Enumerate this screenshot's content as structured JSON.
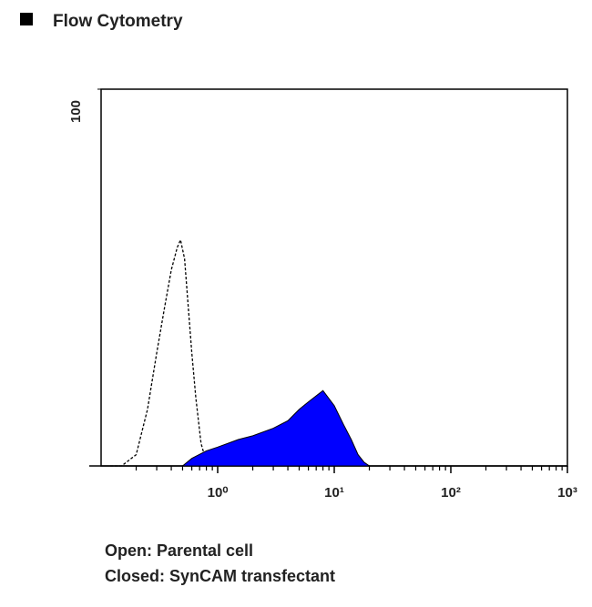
{
  "header": {
    "title": "Flow Cytometry"
  },
  "chart_data": {
    "type": "histogram-overlay",
    "xscale": "log",
    "xlim": [
      0.1,
      1000
    ],
    "ylim": [
      0,
      100
    ],
    "xticks": [
      {
        "value": 1,
        "label": "10⁰"
      },
      {
        "value": 10,
        "label": "10¹"
      },
      {
        "value": 100,
        "label": "10²"
      },
      {
        "value": 1000,
        "label": "10³"
      }
    ],
    "minor_xticks": [
      0.2,
      0.3,
      0.4,
      0.5,
      0.6,
      0.7,
      0.8,
      0.9,
      2,
      3,
      4,
      5,
      6,
      7,
      8,
      9,
      20,
      30,
      40,
      50,
      60,
      70,
      80,
      90,
      200,
      300,
      400,
      500,
      600,
      700,
      800,
      900
    ],
    "yticks": [
      100
    ],
    "series": [
      {
        "name": "Open: Parental cell",
        "color": "#000000",
        "filled": false,
        "x": [
          0.12,
          0.15,
          0.2,
          0.25,
          0.3,
          0.35,
          0.4,
          0.45,
          0.48,
          0.52,
          0.56,
          0.6,
          0.65,
          0.72,
          0.8,
          0.9
        ],
        "values": [
          0,
          0,
          3,
          15,
          30,
          42,
          52,
          58,
          60,
          55,
          42,
          30,
          18,
          6,
          1,
          0
        ]
      },
      {
        "name": "Closed: SynCAM transfectant",
        "color": "#0000ff",
        "filled": true,
        "x": [
          0.5,
          0.6,
          0.8,
          1,
          1.5,
          2,
          3,
          4,
          5,
          6,
          8,
          10,
          12,
          14,
          16,
          18,
          20
        ],
        "values": [
          0,
          2,
          4,
          5,
          7,
          8,
          10,
          12,
          15,
          17,
          20,
          16,
          11,
          7,
          3,
          1,
          0
        ]
      }
    ]
  }
}
